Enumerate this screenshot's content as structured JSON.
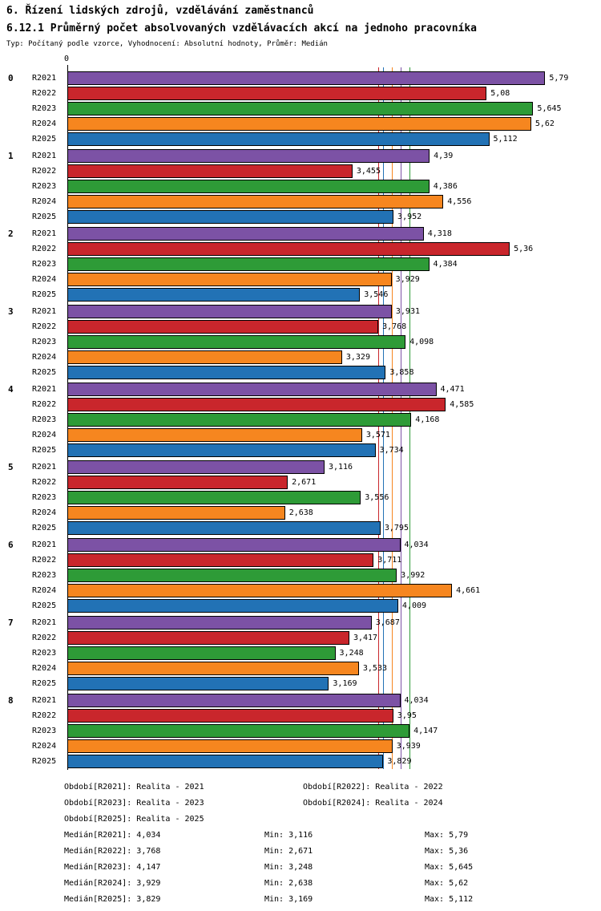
{
  "title_line1": "6. Řízení lidských zdrojů, vzdělávání zaměstnanců",
  "title_line2": "6.12.1 Průměrný počet absolvovaných vzdělávacích akcí na jednoho pracovníka",
  "subtitle": "Typ: Počítaný podle vzorce, Vyhodnocení: Absolutní hodnoty, Průměr: Medián",
  "chart_data": {
    "type": "bar",
    "orientation": "horizontal",
    "title": "6.12.1 Průměrný počet absolvovaných vzdělávacích akcí na jednoho pracovníka",
    "axis_origin_label": "0",
    "xlim": [
      0,
      5.9
    ],
    "grid": false,
    "value_labels": true,
    "categories": [
      "0",
      "1",
      "2",
      "3",
      "4",
      "5",
      "6",
      "7",
      "8"
    ],
    "series": [
      {
        "name": "R2021",
        "color": "#7C52A5",
        "median": 4.034,
        "values": [
          5.79,
          4.39,
          4.318,
          3.931,
          4.471,
          3.116,
          4.034,
          3.687,
          4.034
        ],
        "labels": [
          "5,79",
          "4,39",
          "4,318",
          "3,931",
          "4,471",
          "3,116",
          "4,034",
          "3,687",
          "4,034"
        ]
      },
      {
        "name": "R2022",
        "color": "#C9262C",
        "median": 3.768,
        "values": [
          5.08,
          3.455,
          5.36,
          3.768,
          4.585,
          2.671,
          3.711,
          3.417,
          3.95
        ],
        "labels": [
          "5,08",
          "3,455",
          "5,36",
          "3,768",
          "4,585",
          "2,671",
          "3,711",
          "3,417",
          "3,95"
        ]
      },
      {
        "name": "R2023",
        "color": "#2E9B37",
        "median": 4.147,
        "values": [
          5.645,
          4.386,
          4.384,
          4.098,
          4.168,
          3.556,
          3.992,
          3.248,
          4.147
        ],
        "labels": [
          "5,645",
          "4,386",
          "4,384",
          "4,098",
          "4,168",
          "3,556",
          "3,992",
          "3,248",
          "4,147"
        ]
      },
      {
        "name": "R2024",
        "color": "#F6861F",
        "median": 3.929,
        "values": [
          5.62,
          4.556,
          3.929,
          3.329,
          3.571,
          2.638,
          4.661,
          3.533,
          3.939
        ],
        "labels": [
          "5,62",
          "4,556",
          "3,929",
          "3,329",
          "3,571",
          "2,638",
          "4,661",
          "3,533",
          "3,939"
        ]
      },
      {
        "name": "R2025",
        "color": "#2272B5",
        "median": 3.829,
        "values": [
          5.112,
          3.952,
          3.546,
          3.858,
          3.734,
          3.795,
          4.009,
          3.169,
          3.829
        ],
        "labels": [
          "5,112",
          "3,952",
          "3,546",
          "3,858",
          "3,734",
          "3,795",
          "4,009",
          "3,169",
          "3,829"
        ]
      }
    ]
  },
  "footer": {
    "period_rows": [
      [
        "Období[R2021]: Realita - 2021",
        "Období[R2022]: Realita - 2022"
      ],
      [
        "Období[R2023]: Realita - 2023",
        "Období[R2024]: Realita - 2024"
      ],
      [
        "Období[R2025]: Realita - 2025"
      ]
    ],
    "stat_rows": [
      [
        "Medián[R2021]: 4,034",
        "Min: 3,116",
        "Max: 5,79"
      ],
      [
        "Medián[R2022]: 3,768",
        "Min: 2,671",
        "Max: 5,36"
      ],
      [
        "Medián[R2023]: 4,147",
        "Min: 3,248",
        "Max: 5,645"
      ],
      [
        "Medián[R2024]: 3,929",
        "Min: 2,638",
        "Max: 5,62"
      ],
      [
        "Medián[R2025]: 3,829",
        "Min: 3,169",
        "Max: 5,112"
      ]
    ]
  }
}
